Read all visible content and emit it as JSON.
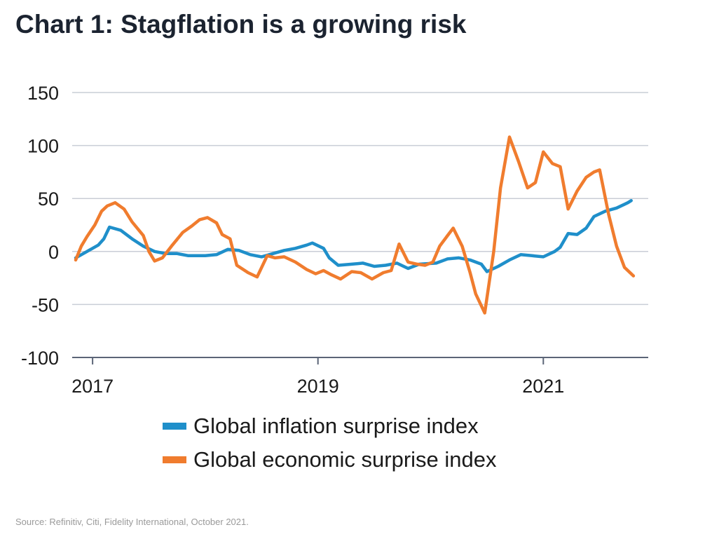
{
  "chart_data": {
    "type": "line",
    "title": "Chart 1: Stagflation is a growing risk",
    "xlabel": "",
    "ylabel": "",
    "ylim": [
      -100,
      150
    ],
    "yticks": [
      150,
      100,
      50,
      0,
      -50,
      -100
    ],
    "xticks": [
      2017,
      2019,
      2021
    ],
    "xlim": [
      2016.85,
      2021.9
    ],
    "grid": true,
    "legend_position": "bottom",
    "series": [
      {
        "name": "Global inflation surprise index",
        "color": "#1f8fca",
        "points": [
          [
            2016.85,
            -6
          ],
          [
            2016.95,
            0
          ],
          [
            2017.05,
            6
          ],
          [
            2017.1,
            12
          ],
          [
            2017.15,
            23
          ],
          [
            2017.25,
            20
          ],
          [
            2017.35,
            12
          ],
          [
            2017.45,
            5
          ],
          [
            2017.55,
            0
          ],
          [
            2017.65,
            -2
          ],
          [
            2017.75,
            -2
          ],
          [
            2017.85,
            -4
          ],
          [
            2018.0,
            -4
          ],
          [
            2018.1,
            -3
          ],
          [
            2018.2,
            2
          ],
          [
            2018.3,
            1
          ],
          [
            2018.4,
            -3
          ],
          [
            2018.5,
            -5
          ],
          [
            2018.6,
            -2
          ],
          [
            2018.7,
            1
          ],
          [
            2018.8,
            3
          ],
          [
            2018.9,
            6
          ],
          [
            2018.95,
            8
          ],
          [
            2019.05,
            3
          ],
          [
            2019.1,
            -6
          ],
          [
            2019.18,
            -13
          ],
          [
            2019.3,
            -12
          ],
          [
            2019.4,
            -11
          ],
          [
            2019.5,
            -14
          ],
          [
            2019.6,
            -13
          ],
          [
            2019.7,
            -11
          ],
          [
            2019.8,
            -16
          ],
          [
            2019.9,
            -12
          ],
          [
            2020.05,
            -11
          ],
          [
            2020.15,
            -7
          ],
          [
            2020.25,
            -6
          ],
          [
            2020.35,
            -8
          ],
          [
            2020.45,
            -12
          ],
          [
            2020.5,
            -19
          ],
          [
            2020.6,
            -14
          ],
          [
            2020.7,
            -8
          ],
          [
            2020.8,
            -3
          ],
          [
            2020.9,
            -4
          ],
          [
            2021.0,
            -5
          ],
          [
            2021.1,
            0
          ],
          [
            2021.15,
            4
          ],
          [
            2021.22,
            17
          ],
          [
            2021.3,
            16
          ],
          [
            2021.38,
            22
          ],
          [
            2021.45,
            33
          ],
          [
            2021.55,
            38
          ],
          [
            2021.65,
            41
          ],
          [
            2021.75,
            46
          ],
          [
            2021.78,
            48
          ]
        ]
      },
      {
        "name": "Global economic surprise index",
        "color": "#f07c2e",
        "points": [
          [
            2016.85,
            -8
          ],
          [
            2016.9,
            5
          ],
          [
            2016.95,
            14
          ],
          [
            2017.02,
            25
          ],
          [
            2017.08,
            38
          ],
          [
            2017.13,
            43
          ],
          [
            2017.2,
            46
          ],
          [
            2017.28,
            40
          ],
          [
            2017.35,
            28
          ],
          [
            2017.45,
            15
          ],
          [
            2017.5,
            0
          ],
          [
            2017.55,
            -9
          ],
          [
            2017.62,
            -6
          ],
          [
            2017.7,
            5
          ],
          [
            2017.8,
            18
          ],
          [
            2017.88,
            24
          ],
          [
            2017.95,
            30
          ],
          [
            2018.02,
            32
          ],
          [
            2018.1,
            27
          ],
          [
            2018.15,
            16
          ],
          [
            2018.22,
            12
          ],
          [
            2018.28,
            -13
          ],
          [
            2018.38,
            -20
          ],
          [
            2018.46,
            -24
          ],
          [
            2018.55,
            -4
          ],
          [
            2018.62,
            -6
          ],
          [
            2018.7,
            -5
          ],
          [
            2018.8,
            -10
          ],
          [
            2018.9,
            -17
          ],
          [
            2018.98,
            -21
          ],
          [
            2019.05,
            -18
          ],
          [
            2019.12,
            -22
          ],
          [
            2019.2,
            -26
          ],
          [
            2019.3,
            -19
          ],
          [
            2019.38,
            -20
          ],
          [
            2019.48,
            -26
          ],
          [
            2019.58,
            -20
          ],
          [
            2019.65,
            -18
          ],
          [
            2019.72,
            7
          ],
          [
            2019.8,
            -10
          ],
          [
            2019.88,
            -12
          ],
          [
            2019.95,
            -13
          ],
          [
            2020.02,
            -10
          ],
          [
            2020.08,
            5
          ],
          [
            2020.15,
            15
          ],
          [
            2020.2,
            22
          ],
          [
            2020.28,
            5
          ],
          [
            2020.35,
            -20
          ],
          [
            2020.4,
            -40
          ],
          [
            2020.48,
            -58
          ],
          [
            2020.56,
            0
          ],
          [
            2020.62,
            60
          ],
          [
            2020.7,
            108
          ],
          [
            2020.78,
            85
          ],
          [
            2020.86,
            60
          ],
          [
            2020.93,
            65
          ],
          [
            2021.0,
            94
          ],
          [
            2021.08,
            83
          ],
          [
            2021.15,
            80
          ],
          [
            2021.22,
            40
          ],
          [
            2021.3,
            57
          ],
          [
            2021.38,
            70
          ],
          [
            2021.45,
            75
          ],
          [
            2021.5,
            77
          ],
          [
            2021.58,
            35
          ],
          [
            2021.65,
            5
          ],
          [
            2021.72,
            -15
          ],
          [
            2021.8,
            -23
          ]
        ]
      }
    ]
  },
  "source": "Source: Refinitiv, Citi, Fidelity International, October 2021."
}
